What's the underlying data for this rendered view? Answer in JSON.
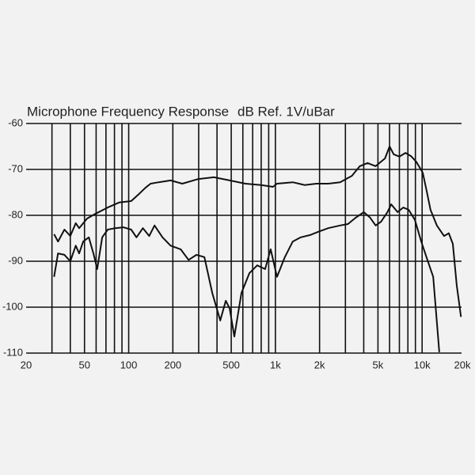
{
  "chart_data": {
    "type": "line",
    "title": "Microphone Frequency Response",
    "subtitle": "dB Ref. 1V/uBar",
    "log_x": true,
    "grid": true,
    "xlim": [
      20,
      20000
    ],
    "ylim": [
      -110,
      -60
    ],
    "yticks": [
      -60,
      -70,
      -80,
      -90,
      -100,
      -110
    ],
    "xticks": [
      20,
      50,
      100,
      200,
      500,
      {
        "value": 1000,
        "label": "1k"
      },
      {
        "value": 2000,
        "label": "2k"
      },
      {
        "value": 5000,
        "label": "5k"
      },
      {
        "value": 10000,
        "label": "10k"
      },
      {
        "value": 20000,
        "label": "20k"
      }
    ],
    "xgrid": [
      30,
      40,
      50,
      60,
      70,
      80,
      90,
      100,
      200,
      300,
      400,
      500,
      600,
      700,
      800,
      900,
      1000,
      2000,
      3000,
      4000,
      5000,
      6000,
      7000,
      8000,
      9000,
      10000
    ],
    "series": [
      {
        "color": "#111111",
        "x": [
          31,
          33,
          36.5,
          40,
          43.6,
          46,
          52,
          59,
          72,
          86,
          104,
          118,
          130,
          141,
          160,
          193,
          232,
          297,
          381,
          488,
          625,
          800,
          963,
          1025,
          1313,
          1580,
          1904,
          2290,
          2760,
          3320,
          3760,
          4250,
          4820,
          5120,
          5580,
          6000,
          6400,
          7000,
          7700,
          8400,
          9150,
          10100,
          10700,
          11400,
          12600,
          14100,
          15200,
          16200,
          17200,
          18400
        ],
        "values": [
          -84.1,
          -85.7,
          -83.1,
          -84.5,
          -81.7,
          -82.8,
          -80.7,
          -79.7,
          -78.3,
          -77.2,
          -76.9,
          -75.3,
          -74,
          -73.1,
          -72.8,
          -72.4,
          -73.1,
          -72.1,
          -71.7,
          -72.4,
          -73.1,
          -73.4,
          -73.8,
          -73.1,
          -72.8,
          -73.4,
          -73.1,
          -73.1,
          -72.8,
          -71.4,
          -69.3,
          -68.6,
          -69.3,
          -68.6,
          -67.6,
          -65,
          -66.7,
          -67.2,
          -66.4,
          -67.1,
          -68.4,
          -70.7,
          -74.5,
          -78.8,
          -82.2,
          -84.5,
          -83.9,
          -86.2,
          -95.2,
          -102.1
        ]
      },
      {
        "color": "#111111",
        "x": [
          31,
          33,
          36.5,
          40,
          43.6,
          46,
          49,
          53.5,
          57.5,
          61,
          66,
          72,
          81,
          92,
          104,
          113,
          125,
          138,
          150,
          170,
          193,
          226,
          256,
          290,
          328,
          371,
          421,
          459,
          488,
          525,
          587,
          665,
          752,
          851,
          929,
          1025,
          1160,
          1313,
          1486,
          1723,
          1950,
          2290,
          2760,
          3120,
          3530,
          4000,
          4420,
          4820,
          5250,
          5800,
          6160,
          6800,
          7440,
          8100,
          8930,
          9860,
          10700,
          11900,
          13100
        ],
        "values": [
          -93.4,
          -88.3,
          -88.6,
          -90,
          -86.6,
          -88.3,
          -85.7,
          -84.8,
          -88.3,
          -91.7,
          -84.8,
          -83.1,
          -82.8,
          -82.6,
          -83.1,
          -84.8,
          -82.8,
          -84.5,
          -82.2,
          -84.8,
          -86.6,
          -87.4,
          -89.7,
          -88.6,
          -89.1,
          -96.9,
          -102.9,
          -98.6,
          -100.3,
          -106.4,
          -96.9,
          -92.6,
          -90.9,
          -91.7,
          -87.4,
          -93.4,
          -89.1,
          -85.7,
          -84.8,
          -84.3,
          -83.6,
          -82.8,
          -82.2,
          -81.9,
          -80.5,
          -79.3,
          -80.5,
          -82.2,
          -81.4,
          -79.3,
          -77.6,
          -79.3,
          -78.3,
          -78.8,
          -81,
          -85.7,
          -89.1,
          -93.4,
          -109.8
        ]
      }
    ]
  }
}
